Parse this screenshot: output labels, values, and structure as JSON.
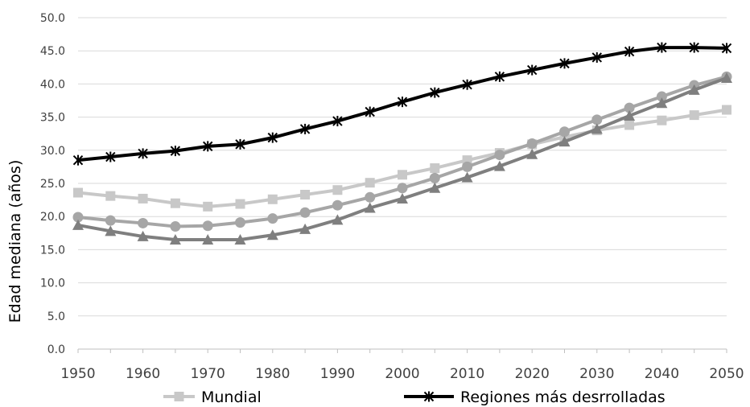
{
  "chart_data": {
    "type": "line",
    "ylabel": "Edad mediana (años)",
    "xlabel": "",
    "ylim": [
      0,
      50
    ],
    "yticks": [
      "0.0",
      "5.0",
      "10.0",
      "15.0",
      "20.0",
      "25.0",
      "30.0",
      "35.0",
      "40.0",
      "45.0",
      "50.0"
    ],
    "xticks": [
      "1950",
      "1960",
      "1970",
      "1980",
      "1990",
      "2000",
      "2010",
      "2020",
      "2030",
      "2040",
      "2050"
    ],
    "x": [
      1950,
      1955,
      1960,
      1965,
      1970,
      1975,
      1980,
      1985,
      1990,
      1995,
      2000,
      2005,
      2010,
      2015,
      2020,
      2025,
      2030,
      2035,
      2040,
      2045,
      2050
    ],
    "grid": "horizontal",
    "legend_position": "bottom",
    "series": [
      {
        "name": "Mundial",
        "color": "#c8c8c8",
        "marker": "square",
        "values": [
          23.6,
          23.1,
          22.7,
          22.0,
          21.5,
          21.9,
          22.6,
          23.3,
          24.0,
          25.1,
          26.3,
          27.3,
          28.5,
          29.6,
          30.9,
          32.0,
          33.0,
          33.8,
          34.5,
          35.3,
          36.1
        ]
      },
      {
        "name": "",
        "color": "#a6a6a6",
        "marker": "circle",
        "values": [
          19.9,
          19.4,
          19.0,
          18.5,
          18.6,
          19.1,
          19.7,
          20.6,
          21.7,
          22.9,
          24.3,
          25.8,
          27.5,
          29.3,
          31.0,
          32.8,
          34.6,
          36.4,
          38.1,
          39.8,
          41.1
        ]
      },
      {
        "name": "",
        "color": "#7f7f7f",
        "marker": "triangle",
        "values": [
          18.7,
          17.8,
          17.0,
          16.5,
          16.5,
          16.5,
          17.2,
          18.1,
          19.5,
          21.3,
          22.7,
          24.3,
          25.9,
          27.6,
          29.4,
          31.3,
          33.2,
          35.2,
          37.1,
          39.1,
          40.9
        ]
      },
      {
        "name": "Regiones más desrrolladas",
        "color": "#000000",
        "marker": "asterisk",
        "values": [
          28.5,
          29.0,
          29.5,
          29.9,
          30.6,
          30.9,
          31.9,
          33.2,
          34.4,
          35.8,
          37.3,
          38.7,
          39.9,
          41.1,
          42.1,
          43.1,
          44.0,
          44.9,
          45.5,
          45.5,
          45.4
        ]
      }
    ]
  }
}
